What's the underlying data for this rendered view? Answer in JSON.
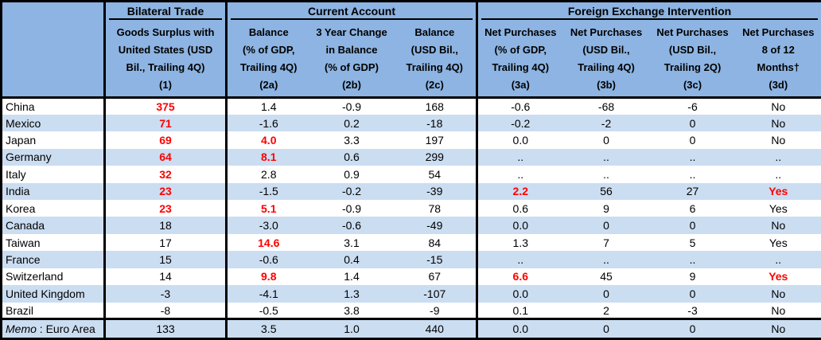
{
  "colors": {
    "header_bg": "#8DB4E2",
    "alt_row_bg": "#CBDDF1",
    "red_highlight": "#FF0000",
    "grid": "#000000"
  },
  "table": {
    "groups": [
      {
        "label": "Bilateral Trade"
      },
      {
        "label": "Current Account"
      },
      {
        "label": "Foreign Exchange Intervention"
      }
    ],
    "columns": [
      {
        "id": "1",
        "label": "Goods Surplus with\nUnited States (USD\nBil., Trailing 4Q)\n(1)"
      },
      {
        "id": "2a",
        "label": "Balance\n(% of GDP,\nTrailing 4Q)\n(2a)"
      },
      {
        "id": "2b",
        "label": "3 Year Change\nin Balance\n(% of GDP)\n(2b)"
      },
      {
        "id": "2c",
        "label": "Balance\n(USD Bil.,\nTrailing 4Q)\n(2c)"
      },
      {
        "id": "3a",
        "label": "Net Purchases\n(% of GDP,\nTrailing 4Q)\n(3a)"
      },
      {
        "id": "3b",
        "label": "Net Purchases\n(USD Bil.,\nTrailing 4Q)\n(3b)"
      },
      {
        "id": "3c",
        "label": "Net Purchases\n(USD Bil.,\nTrailing 2Q)\n(3c)"
      },
      {
        "id": "3d",
        "label": "Net Purchases\n8 of 12\nMonths†\n(3d)"
      }
    ],
    "rows": [
      {
        "label": "China",
        "values": [
          "375",
          "1.4",
          "-0.9",
          "168",
          "-0.6",
          "-68",
          "-6",
          "No"
        ],
        "red_value_indexes": [
          0
        ]
      },
      {
        "label": "Mexico",
        "values": [
          "71",
          "-1.6",
          "0.2",
          "-18",
          "-0.2",
          "-2",
          "0",
          "No"
        ],
        "red_value_indexes": [
          0
        ]
      },
      {
        "label": "Japan",
        "values": [
          "69",
          "4.0",
          "3.3",
          "197",
          "0.0",
          "0",
          "0",
          "No"
        ],
        "red_value_indexes": [
          0,
          1
        ]
      },
      {
        "label": "Germany",
        "values": [
          "64",
          "8.1",
          "0.6",
          "299",
          "..",
          "..",
          "..",
          ".."
        ],
        "red_value_indexes": [
          0,
          1
        ]
      },
      {
        "label": "Italy",
        "values": [
          "32",
          "2.8",
          "0.9",
          "54",
          "..",
          "..",
          "..",
          ".."
        ],
        "red_value_indexes": [
          0
        ]
      },
      {
        "label": "India",
        "values": [
          "23",
          "-1.5",
          "-0.2",
          "-39",
          "2.2",
          "56",
          "27",
          "Yes"
        ],
        "red_value_indexes": [
          0,
          4,
          7
        ]
      },
      {
        "label": "Korea",
        "values": [
          "23",
          "5.1",
          "-0.9",
          "78",
          "0.6",
          "9",
          "6",
          "Yes"
        ],
        "red_value_indexes": [
          0,
          1
        ]
      },
      {
        "label": "Canada",
        "values": [
          "18",
          "-3.0",
          "-0.6",
          "-49",
          "0.0",
          "0",
          "0",
          "No"
        ],
        "red_value_indexes": []
      },
      {
        "label": "Taiwan",
        "values": [
          "17",
          "14.6",
          "3.1",
          "84",
          "1.3",
          "7",
          "5",
          "Yes"
        ],
        "red_value_indexes": [
          1
        ]
      },
      {
        "label": "France",
        "values": [
          "15",
          "-0.6",
          "0.4",
          "-15",
          "..",
          "..",
          "..",
          ".."
        ],
        "red_value_indexes": []
      },
      {
        "label": "Switzerland",
        "values": [
          "14",
          "9.8",
          "1.4",
          "67",
          "6.6",
          "45",
          "9",
          "Yes"
        ],
        "red_value_indexes": [
          1,
          4,
          7
        ]
      },
      {
        "label": "United Kingdom",
        "values": [
          "-3",
          "-4.1",
          "1.3",
          "-107",
          "0.0",
          "0",
          "0",
          "No"
        ],
        "red_value_indexes": []
      },
      {
        "label": "Brazil",
        "values": [
          "-8",
          "-0.5",
          "3.8",
          "-9",
          "0.1",
          "2",
          "-3",
          "No"
        ],
        "red_value_indexes": []
      },
      {
        "label_italic": "Memo",
        "label": " : Euro Area",
        "memo": true,
        "values": [
          "133",
          "3.5",
          "1.0",
          "440",
          "0.0",
          "0",
          "0",
          "No"
        ],
        "red_value_indexes": []
      }
    ]
  }
}
